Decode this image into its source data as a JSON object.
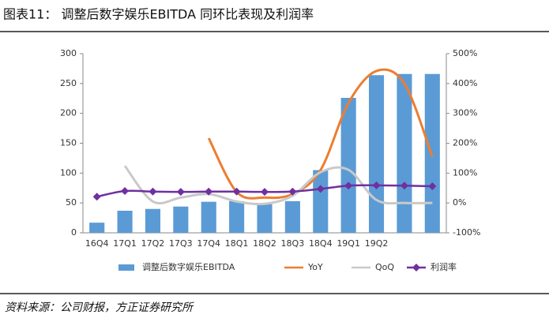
{
  "chart_data": {
    "type": "bar",
    "title": "图表11： 调整后数字娱乐EBITDA 同环比表现及利润率",
    "source": "资料来源：公司财报，方正证券研究所",
    "categories": [
      "16Q4",
      "17Q1",
      "17Q2",
      "17Q3",
      "17Q4",
      "18Q1",
      "18Q2",
      "18Q3",
      "18Q4",
      "19Q1",
      "19Q2",
      null,
      null
    ],
    "series": [
      {
        "name": "调整后数字娱乐EBITDA",
        "type": "bar",
        "color": "#5b9bd5",
        "values": [
          17,
          37,
          40,
          44,
          52,
          53,
          48,
          53,
          105,
          226,
          264,
          266,
          266
        ]
      },
      {
        "name": "YoY",
        "type": "line",
        "axis": "y2",
        "color": "#ed7d31",
        "values": [
          null,
          null,
          null,
          null,
          217,
          37,
          18,
          30,
          110,
          335,
          442,
          400,
          155
        ]
      },
      {
        "name": "QoQ",
        "type": "line",
        "axis": "y2",
        "color": "#c9c9c9",
        "values": [
          null,
          124,
          5,
          18,
          30,
          5,
          -3,
          24,
          103,
          111,
          10,
          0,
          0
        ]
      },
      {
        "name": "利润率",
        "type": "line",
        "axis": "y2",
        "color": "#7030a0",
        "marker": "diamond",
        "values": [
          21,
          40,
          38,
          37,
          38,
          38,
          37,
          38,
          47,
          58,
          59,
          58,
          56
        ]
      }
    ],
    "ylim": [
      0,
      300
    ],
    "yticks": [
      0,
      50,
      100,
      150,
      200,
      250,
      300
    ],
    "y2lim": [
      -100,
      500
    ],
    "y2ticks": [
      {
        "value": -100,
        "label": "-100%"
      },
      {
        "value": 0,
        "label": "0%"
      },
      {
        "value": 100,
        "label": "100%"
      },
      {
        "value": 200,
        "label": "200%"
      },
      {
        "value": 300,
        "label": "300%"
      },
      {
        "value": 400,
        "label": "400%"
      },
      {
        "value": 500,
        "label": "500%"
      }
    ],
    "legend": "bottom"
  }
}
